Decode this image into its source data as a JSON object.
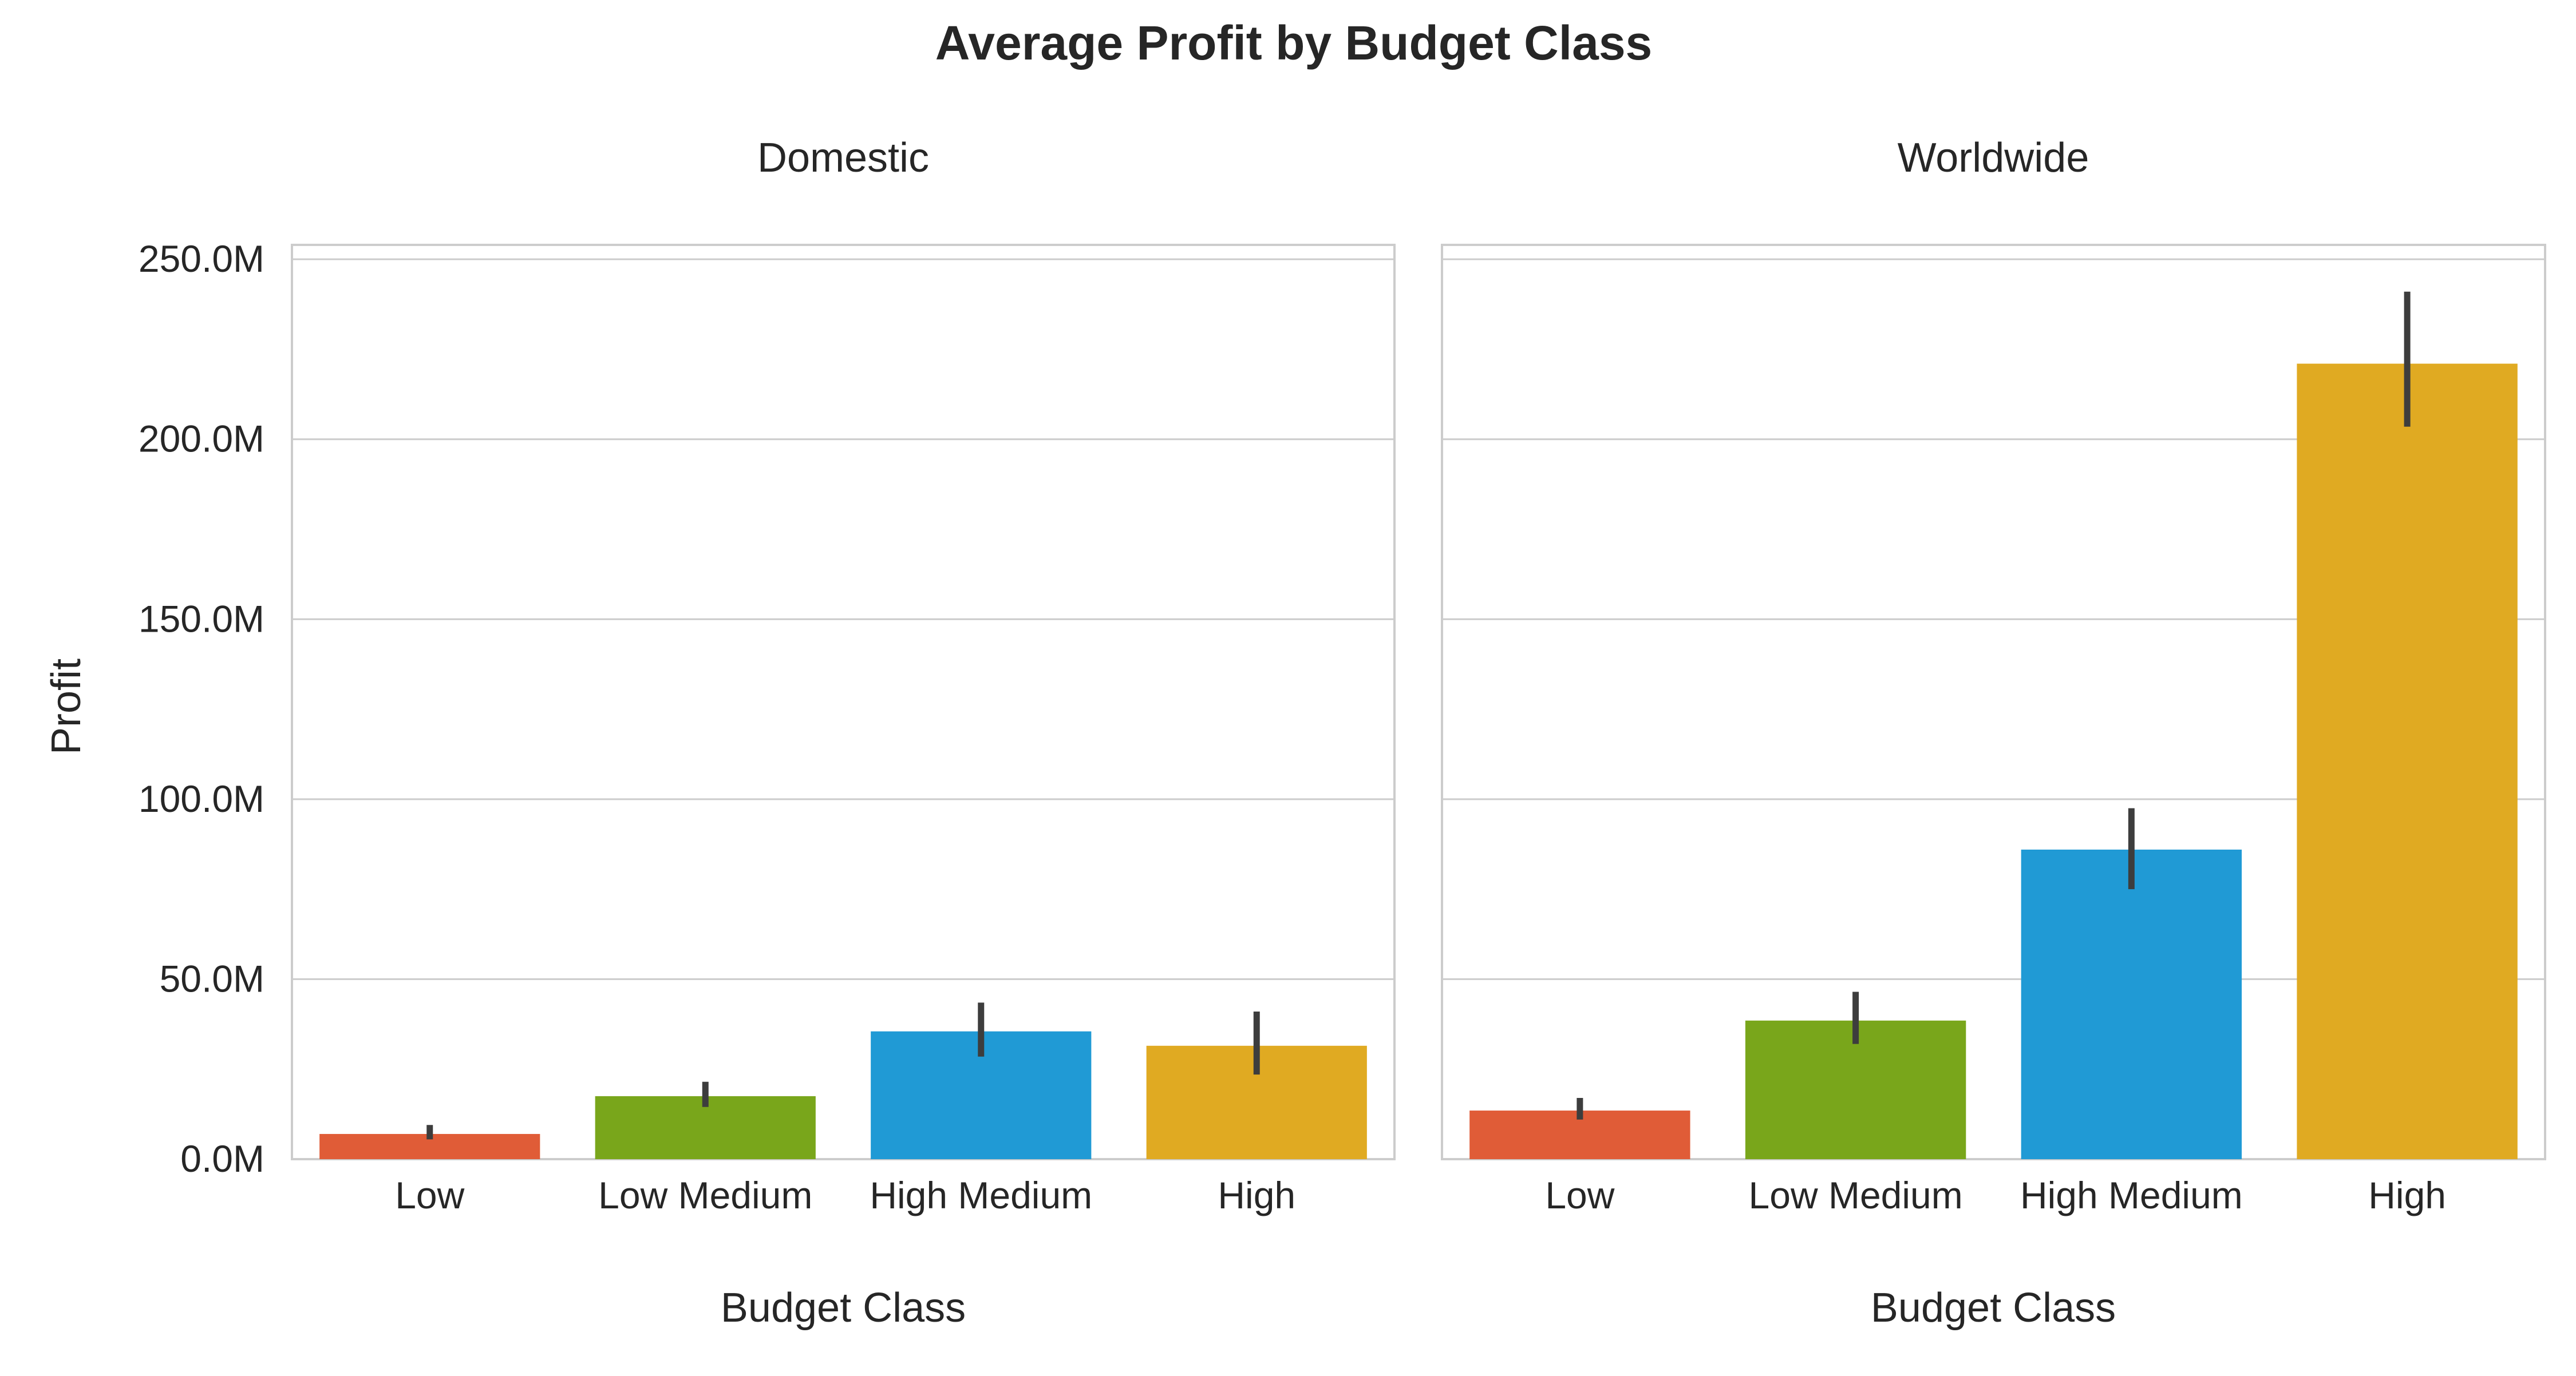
{
  "chart_data": {
    "type": "bar",
    "title": "Average Profit by Budget Class",
    "ylabel": "Profit",
    "ylim": [
      0,
      254000000
    ],
    "yticks": [
      0,
      50000000,
      100000000,
      150000000,
      200000000,
      250000000
    ],
    "ytick_labels": [
      "0.0M",
      "50.0M",
      "100.0M",
      "150.0M",
      "200.0M",
      "250.0M"
    ],
    "grid": true,
    "colors": [
      "#e05c37",
      "#79a61b",
      "#209ad5",
      "#e0aa22"
    ],
    "panels": [
      {
        "title": "Domestic",
        "xlabel": "Budget Class",
        "categories": [
          "Low",
          "Low Medium",
          "High Medium",
          "High"
        ],
        "values": [
          7000000,
          17500000,
          35500000,
          31500000
        ],
        "error_low": [
          5500000,
          14500000,
          28500000,
          23500000
        ],
        "error_high": [
          9500000,
          21500000,
          43500000,
          41000000
        ]
      },
      {
        "title": "Worldwide",
        "xlabel": "Budget Class",
        "categories": [
          "Low",
          "Low Medium",
          "High Medium",
          "High"
        ],
        "values": [
          13500000,
          38500000,
          86000000,
          221000000
        ],
        "error_low": [
          11000000,
          32000000,
          75000000,
          203500000
        ],
        "error_high": [
          17000000,
          46500000,
          97500000,
          241000000
        ]
      }
    ]
  }
}
